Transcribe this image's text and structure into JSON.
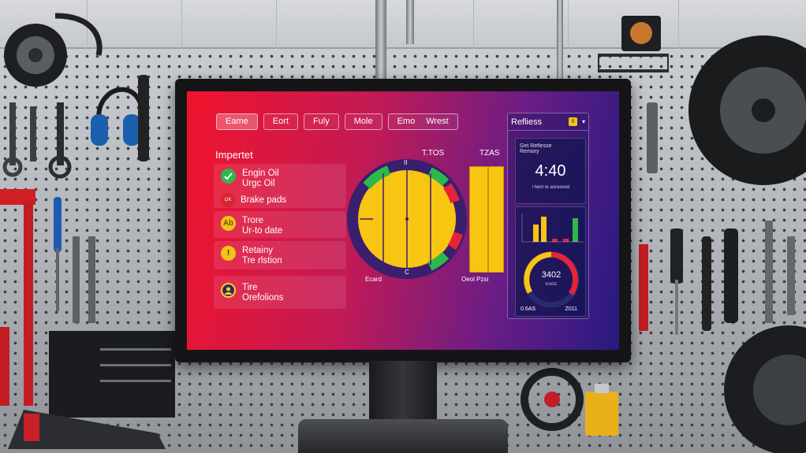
{
  "tabs": [
    {
      "label": "Eame"
    },
    {
      "label": "Eort"
    },
    {
      "label": "Fuly"
    },
    {
      "label": "Mole"
    },
    {
      "label": "Emo"
    },
    {
      "label": "Wrest"
    }
  ],
  "left_panel": {
    "title": "Impertet",
    "items": [
      {
        "line1": "Engin Oil",
        "line2": "Urgc Oil",
        "sub_label": "Brake pads",
        "sub_badge": "OK",
        "badge_color": "#2fb84a",
        "badge_icon": "check-icon"
      },
      {
        "line1": "Trore",
        "line2": "Ur-to date",
        "badge_text": "Ab",
        "badge_color": "#f2c318"
      },
      {
        "line1": "Retainy",
        "line2": "Tre rlstion",
        "badge_text": "!",
        "badge_color": "#f2c318"
      },
      {
        "line1": "Tire",
        "line2": "Orefolions",
        "badge_icon": "avatar-icon",
        "badge_color": "#2c2d55"
      }
    ]
  },
  "gauge": {
    "label_top_left": "T.TOS",
    "label_top_right": "TZAS",
    "label_bottom_left": "Ecard",
    "label_bottom_right": "Oeol Pzsi",
    "tick_top": "II",
    "tick_bottom": "C"
  },
  "side_panel": {
    "title": "Refliess",
    "badge": "II",
    "clock_caption_1": "Get Reflesse",
    "clock_caption_2": "Remory",
    "clock_time": "4:40",
    "clock_note": "Thent te aorasved",
    "meter_value": "3402",
    "meter_sub": "E502",
    "foot_left": "0.6AS",
    "foot_right": "Z011"
  },
  "colors": {
    "accent_yellow": "#f4c20d",
    "accent_green": "#2fb84a",
    "accent_red": "#e62338",
    "screen_left": "#f0142c",
    "screen_right": "#261a80"
  }
}
